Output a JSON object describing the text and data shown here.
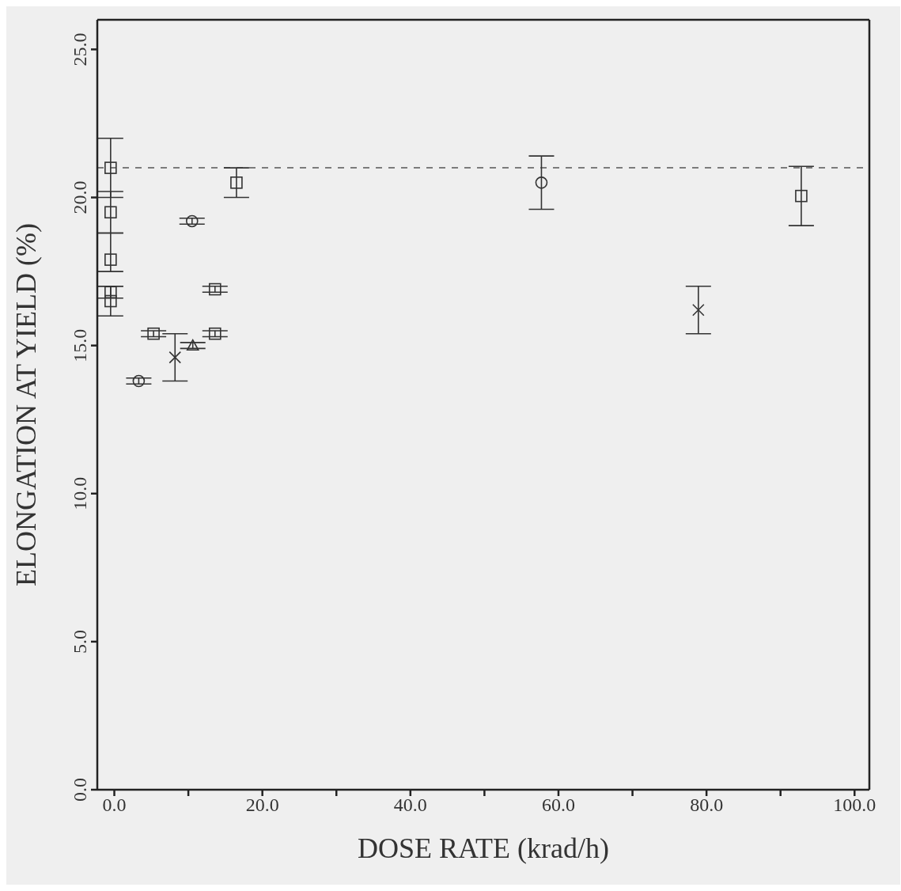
{
  "chart_data": {
    "type": "scatter",
    "xlabel": "DOSE RATE (krad/h)",
    "ylabel": "ELONGATION AT YIELD (%)",
    "xlim": [
      -2.3,
      102
    ],
    "ylim": [
      0,
      26
    ],
    "xticks": [
      {
        "value": 0,
        "label": "0.0"
      },
      {
        "value": 10,
        "label": null
      },
      {
        "value": 20,
        "label": "20.0"
      },
      {
        "value": 30,
        "label": null
      },
      {
        "value": 40,
        "label": "40.0"
      },
      {
        "value": 50,
        "label": null
      },
      {
        "value": 60,
        "label": "60.0"
      },
      {
        "value": 70,
        "label": null
      },
      {
        "value": 80,
        "label": "80.0"
      },
      {
        "value": 90,
        "label": null
      },
      {
        "value": 100,
        "label": "100.0"
      }
    ],
    "yticks": [
      {
        "value": 0,
        "label": "0.0"
      },
      {
        "value": 5,
        "label": "5.0"
      },
      {
        "value": 10,
        "label": "10.0"
      },
      {
        "value": 15,
        "label": "15.0"
      },
      {
        "value": 20,
        "label": "20.0"
      },
      {
        "value": 25,
        "label": "25.0"
      }
    ],
    "grid": false,
    "legend": false,
    "series": [
      {
        "marker": "square",
        "color": "#333333",
        "x": [
          -0.5,
          -0.5,
          -0.5,
          -0.5,
          -0.5,
          16.5,
          13.6,
          13.6,
          5.3,
          92.8
        ],
        "values": [
          21.0,
          19.5,
          17.9,
          16.8,
          16.5,
          20.5,
          16.9,
          15.4,
          15.4,
          20.05
        ],
        "errors": [
          [
            20.0,
            22.0
          ],
          [
            18.8,
            20.2
          ],
          [
            17.5,
            18.8
          ],
          0.2,
          0.5,
          [
            20.0,
            21.0
          ],
          0.1,
          0.1,
          0.1,
          1.0
        ]
      },
      {
        "marker": "circle",
        "color": "#333333",
        "x": [
          10.5,
          3.3,
          57.7
        ],
        "values": [
          19.2,
          13.8,
          20.5
        ],
        "errors": [
          0.1,
          0.1,
          0.9
        ]
      },
      {
        "marker": "cross",
        "color": "#333333",
        "x": [
          8.2,
          78.9
        ],
        "values": [
          14.6,
          16.2
        ],
        "errors": [
          0.8,
          0.8
        ]
      },
      {
        "marker": "triangle",
        "color": "#333333",
        "x": [
          10.6
        ],
        "values": [
          15.0
        ],
        "errors": [
          0.1
        ]
      }
    ],
    "ref_lines": [
      {
        "axis": "y",
        "value": 21.0,
        "line_style": "dashed",
        "color": "#555555"
      }
    ]
  }
}
